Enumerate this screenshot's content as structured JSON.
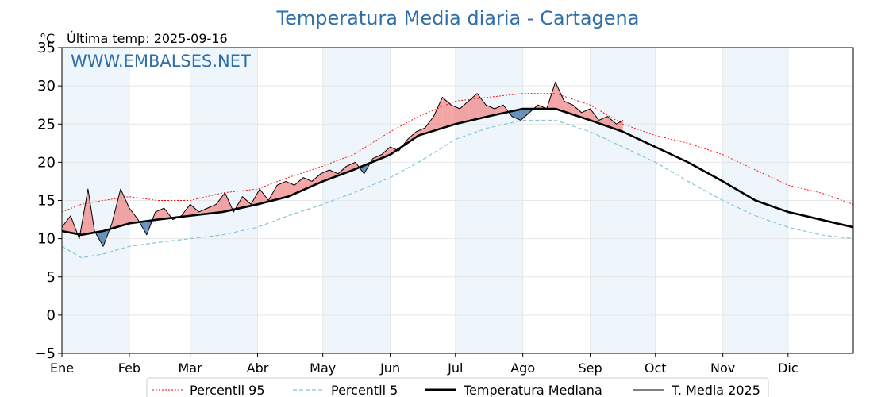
{
  "chart_data": {
    "type": "line",
    "title": "Temperatura Media diaria - Cartagena",
    "unit_label": "°C",
    "subtitle": "Última temp: 2025-09-16",
    "watermark": "WWW.EMBALSES.NET",
    "ylim": [
      -5,
      35
    ],
    "yticks": [
      -5,
      0,
      5,
      10,
      15,
      20,
      25,
      30,
      35
    ],
    "ytick_labels": [
      "−5",
      "0",
      "5",
      "10",
      "15",
      "20",
      "25",
      "30",
      "35"
    ],
    "x_range_days": [
      1,
      365
    ],
    "months": [
      {
        "label": "Ene",
        "start_day": 1
      },
      {
        "label": "Feb",
        "start_day": 32
      },
      {
        "label": "Mar",
        "start_day": 60
      },
      {
        "label": "Abr",
        "start_day": 91
      },
      {
        "label": "May",
        "start_day": 121
      },
      {
        "label": "Jun",
        "start_day": 152
      },
      {
        "label": "Jul",
        "start_day": 182
      },
      {
        "label": "Ago",
        "start_day": 213
      },
      {
        "label": "Sep",
        "start_day": 244
      },
      {
        "label": "Oct",
        "start_day": 274
      },
      {
        "label": "Nov",
        "start_day": 305
      },
      {
        "label": "Dic",
        "start_day": 335
      }
    ],
    "grid": true,
    "legend_position": "bottom-center",
    "colors": {
      "p95": "#ff0000",
      "p5": "#87c4d9",
      "median": "#000000",
      "current": "#000000",
      "above_fill": "#f08080",
      "below_fill": "#4f7fb0",
      "title": "#2f6fa7",
      "band": "#eef5fb"
    },
    "series": [
      {
        "name": "Percentil 95",
        "style": "dotted",
        "x": [
          1,
          10,
          20,
          32,
          45,
          60,
          75,
          91,
          105,
          121,
          135,
          152,
          165,
          182,
          197,
          213,
          228,
          244,
          259,
          274,
          289,
          305,
          320,
          335,
          350,
          365
        ],
        "values": [
          13.5,
          14.5,
          15.0,
          15.5,
          15.0,
          15.0,
          16.0,
          16.5,
          18.0,
          19.5,
          21.0,
          24.0,
          26.0,
          28.0,
          28.5,
          29.0,
          29.0,
          27.5,
          25.0,
          23.5,
          22.5,
          21.0,
          19.0,
          17.0,
          16.0,
          14.5
        ]
      },
      {
        "name": "Percentil 5",
        "style": "dashed",
        "x": [
          1,
          10,
          20,
          32,
          45,
          60,
          75,
          91,
          105,
          121,
          135,
          152,
          165,
          182,
          197,
          213,
          228,
          244,
          259,
          274,
          289,
          305,
          320,
          335,
          350,
          365
        ],
        "values": [
          9.0,
          7.5,
          8.0,
          9.0,
          9.5,
          10.0,
          10.5,
          11.5,
          13.0,
          14.5,
          16.0,
          18.0,
          20.0,
          23.0,
          24.5,
          25.5,
          25.5,
          24.0,
          22.0,
          20.0,
          17.5,
          15.0,
          13.0,
          11.5,
          10.5,
          10.0
        ]
      },
      {
        "name": "Temperatura Mediana",
        "style": "thick",
        "x": [
          1,
          10,
          20,
          32,
          45,
          60,
          75,
          91,
          105,
          121,
          135,
          152,
          165,
          182,
          197,
          213,
          228,
          244,
          259,
          274,
          289,
          305,
          320,
          335,
          350,
          365
        ],
        "values": [
          11.0,
          10.5,
          11.0,
          12.0,
          12.5,
          13.0,
          13.5,
          14.5,
          15.5,
          17.5,
          19.0,
          21.0,
          23.5,
          25.0,
          26.0,
          27.0,
          27.0,
          25.5,
          24.0,
          22.0,
          20.0,
          17.5,
          15.0,
          13.5,
          12.5,
          11.5
        ]
      },
      {
        "name": "T. Media 2025",
        "style": "thin",
        "x": [
          1,
          5,
          9,
          13,
          16,
          20,
          24,
          28,
          32,
          36,
          40,
          44,
          48,
          52,
          56,
          60,
          64,
          68,
          72,
          76,
          80,
          84,
          88,
          92,
          96,
          100,
          104,
          108,
          112,
          116,
          120,
          124,
          128,
          132,
          136,
          140,
          144,
          148,
          152,
          156,
          160,
          164,
          168,
          172,
          176,
          180,
          184,
          188,
          192,
          196,
          200,
          204,
          208,
          212,
          216,
          220,
          224,
          228,
          232,
          236,
          240,
          244,
          248,
          252,
          256,
          259
        ],
        "values": [
          11.5,
          13.0,
          10.0,
          16.5,
          11.0,
          9.0,
          12.0,
          16.5,
          14.0,
          12.5,
          10.5,
          13.5,
          14.0,
          12.5,
          13.0,
          14.5,
          13.5,
          14.0,
          14.5,
          16.0,
          13.5,
          15.5,
          14.5,
          16.5,
          15.0,
          17.0,
          17.5,
          17.0,
          18.0,
          17.5,
          18.5,
          19.0,
          18.5,
          19.5,
          20.0,
          18.5,
          20.5,
          21.0,
          22.0,
          21.5,
          23.0,
          24.0,
          24.5,
          26.0,
          28.5,
          27.5,
          27.0,
          28.0,
          29.0,
          27.5,
          27.0,
          27.5,
          26.0,
          25.5,
          26.5,
          27.5,
          27.0,
          30.5,
          28.0,
          27.5,
          26.5,
          27.0,
          25.5,
          26.0,
          25.0,
          25.5
        ]
      }
    ]
  }
}
